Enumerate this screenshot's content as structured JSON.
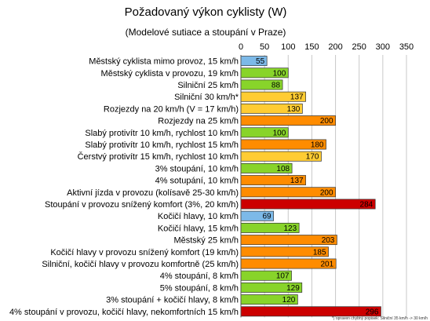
{
  "chart_data": {
    "type": "bar",
    "orientation": "horizontal",
    "title": "Požadovaný výkon cyklisty (W)",
    "subtitle": "(Modelové sutiace a stoupání v Praze)",
    "xlim": [
      0,
      350
    ],
    "xticks": [
      0,
      50,
      100,
      150,
      200,
      250,
      300,
      350
    ],
    "grid": true,
    "footnote": "*) opraven chybný popisek: Silniční 35 km/h -> 30 km/h",
    "categories": [
      "Městský cyklista mimo provoz, 15 km/h",
      "Městský cyklista v provozu, 19 km/h",
      "Silniční 25 km/h",
      "Silniční 30 km/h*",
      "Rozjezdy na 20 km/h (V = 17 km/h)",
      "Rozjezdy na 25 km/h",
      "Slabý protivítr 10 km/h, rychlost 10 km/h",
      "Slabý protivítr 10 km/h, rychlost 15 km/h",
      "Čerstvý protivítr 15 km/h, rychlost 10 km/h",
      "3% stoupání, 10 km/h",
      "4% sotupání, 10 km/h",
      "Aktivní jízda v provozu (kolísavě 25-30 km/h)",
      "Stoupání v provozu snížený komfort (3%, 20 km/h)",
      "Kočičí hlavy, 10 km/h",
      "Kočičí hlavy, 15 km/h",
      "Městský 25 km/h",
      "Kočičí hlavy v provozu snížený komfort (19 km/h)",
      "Silniční, kočičí hlavy v provozu komfortně (25 km/h)",
      "4% stoupání, 8 km/h",
      "5% stoupání, 8 km/h",
      "3% stoupání + kočičí hlavy, 8 km/h",
      "4% stoupání v provozu, kočičí hlavy, nekomfortních 15 km/h"
    ],
    "values": [
      55,
      100,
      88,
      137,
      130,
      200,
      100,
      180,
      170,
      108,
      137,
      200,
      284,
      69,
      123,
      203,
      185,
      201,
      107,
      129,
      120,
      296
    ],
    "bar_colors": [
      "#7cb9e8",
      "#88d42a",
      "#88d42a",
      "#ffcc33",
      "#ffcc33",
      "#ff8c00",
      "#88d42a",
      "#ff8c00",
      "#ffcc33",
      "#88d42a",
      "#ff8c00",
      "#ff8c00",
      "#cc0000",
      "#7cb9e8",
      "#88d42a",
      "#ff8c00",
      "#ff8c00",
      "#ff8c00",
      "#88d42a",
      "#88d42a",
      "#88d42a",
      "#cc0000"
    ]
  }
}
